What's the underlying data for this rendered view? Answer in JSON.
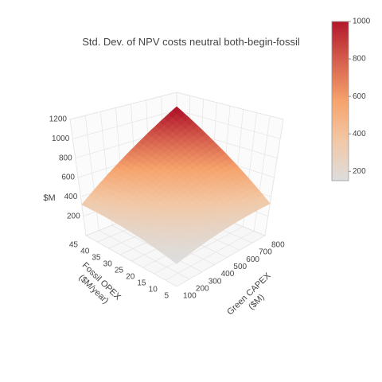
{
  "chart_data": {
    "type": "surface",
    "title": "Std. Dev. of NPV costs neutral both-begin-fossil",
    "z_axis": {
      "title": "$M",
      "range": [
        0,
        1200
      ],
      "ticks": [
        "200",
        "400",
        "600",
        "800",
        "1000",
        "1200"
      ]
    },
    "y_axis": {
      "title_line1": "Fossil OPEX",
      "title_line2": "($M/year)",
      "range": [
        5,
        45
      ],
      "ticks": [
        "5",
        "10",
        "15",
        "20",
        "25",
        "30",
        "35",
        "40",
        "45"
      ]
    },
    "x_axis": {
      "title_line1": "Green CAPEX",
      "title_line2": "($M)",
      "range": [
        100,
        800
      ],
      "ticks": [
        "100",
        "200",
        "300",
        "400",
        "500",
        "600",
        "700",
        "800"
      ]
    },
    "colorbar": {
      "range": [
        150,
        1000
      ],
      "ticks": [
        "200",
        "400",
        "600",
        "800",
        "1000"
      ],
      "colors": [
        "#DDDDDD",
        "#F2C8A6",
        "#F6A36C",
        "#D6604D",
        "#B2182B"
      ]
    },
    "surface": {
      "x": [
        100,
        800
      ],
      "y": [
        5,
        45
      ],
      "z": [
        [
          140,
          330
        ],
        [
          320,
          1040
        ]
      ]
    },
    "grid": true
  }
}
